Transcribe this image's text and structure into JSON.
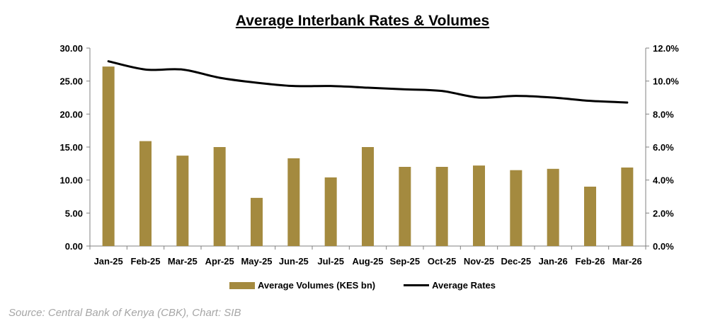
{
  "chart_data": {
    "type": "bar+line",
    "title": "Average Interbank Rates & Volumes",
    "categories": [
      "Jan-25",
      "Feb-25",
      "Mar-25",
      "Apr-25",
      "May-25",
      "Jun-25",
      "Jul-25",
      "Aug-25",
      "Sep-25",
      "Oct-25",
      "Nov-25",
      "Dec-25",
      "Jan-26",
      "Feb-26",
      "Mar-26"
    ],
    "series": [
      {
        "name": "Average Volumes (KES bn)",
        "type": "bar",
        "axis": "left",
        "color": "#a48a3f",
        "values": [
          27.2,
          15.9,
          13.7,
          15.0,
          7.3,
          13.3,
          10.4,
          15.0,
          12.0,
          12.0,
          12.2,
          11.5,
          11.7,
          9.0,
          11.9
        ]
      },
      {
        "name": "Average Rates",
        "type": "line",
        "axis": "right",
        "color": "#000000",
        "values": [
          11.2,
          10.7,
          10.7,
          10.2,
          9.9,
          9.7,
          9.7,
          9.6,
          9.5,
          9.4,
          9.0,
          9.1,
          9.0,
          8.8,
          8.7
        ]
      }
    ],
    "left_axis": {
      "ylim": [
        0,
        30
      ],
      "ticks": [
        "0.00",
        "5.00",
        "10.00",
        "15.00",
        "20.00",
        "25.00",
        "30.00"
      ]
    },
    "right_axis": {
      "ylim": [
        0,
        12
      ],
      "ticks": [
        "0.0%",
        "2.0%",
        "4.0%",
        "6.0%",
        "8.0%",
        "10.0%",
        "12.0%"
      ]
    },
    "legend_position": "bottom",
    "grid": false
  },
  "source": "Source: Central Bank of Kenya (CBK), Chart: SIB"
}
